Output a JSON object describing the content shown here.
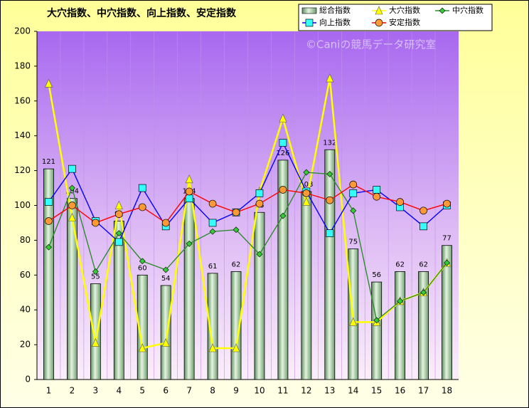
{
  "chart_data": {
    "type": "bar-line",
    "title": "大穴指数、中穴指数、向上指数、安定指数",
    "annotation": "©Caniの競馬データ研究室",
    "categories": [
      "1",
      "2",
      "3",
      "4",
      "5",
      "6",
      "7",
      "8",
      "9",
      "10",
      "11",
      "12",
      "13",
      "14",
      "15",
      "16",
      "17",
      "18"
    ],
    "ylim": [
      0,
      200
    ],
    "yticks": [
      0,
      20,
      40,
      60,
      80,
      100,
      120,
      140,
      160,
      180,
      200
    ],
    "series": [
      {
        "name": "総合指数",
        "type": "bar",
        "color": "#9cc89c",
        "values": [
          121,
          104,
          55,
          91,
          60,
          54,
          104,
          61,
          62,
          96,
          126,
          108,
          132,
          75,
          56,
          62,
          62,
          77
        ]
      },
      {
        "name": "大穴指数",
        "type": "line",
        "marker": "triangle",
        "color": "#ffff00",
        "values": [
          170,
          93,
          21,
          100,
          18,
          21,
          115,
          18,
          18,
          108,
          150,
          102,
          173,
          33,
          33,
          45,
          50,
          67
        ]
      },
      {
        "name": "中穴指数",
        "type": "line",
        "marker": "diamond",
        "color": "#2e8b2e",
        "values": [
          76,
          110,
          62,
          84,
          68,
          63,
          78,
          85,
          86,
          72,
          94,
          119,
          118,
          97,
          34,
          45,
          50,
          67
        ]
      },
      {
        "name": "向上指数",
        "type": "line",
        "marker": "square",
        "color": "#0000ff",
        "values": [
          102,
          121,
          91,
          79,
          110,
          88,
          104,
          90,
          96,
          107,
          136,
          108,
          84,
          107,
          109,
          99,
          88,
          100
        ]
      },
      {
        "name": "安定指数",
        "type": "line",
        "marker": "circle",
        "color": "#ff0000",
        "values": [
          91,
          100,
          90,
          95,
          99,
          90,
          108,
          101,
          96,
          101,
          109,
          107,
          103,
          112,
          105,
          102,
          97,
          101
        ]
      }
    ]
  }
}
